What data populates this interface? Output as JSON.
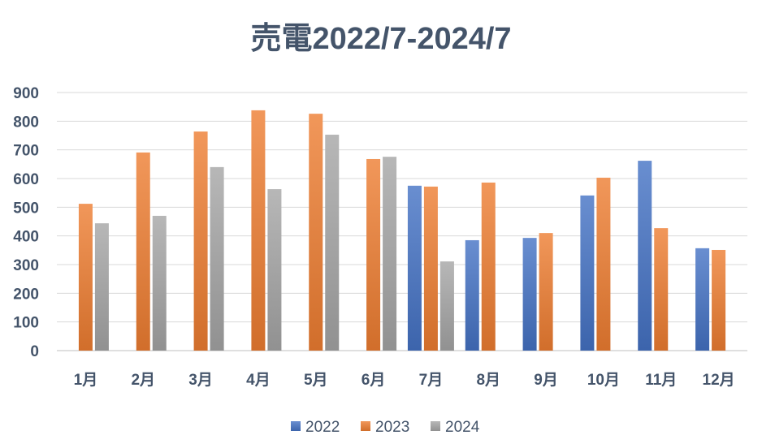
{
  "chart_data": {
    "type": "bar",
    "title": "売電2022/7-2024/7",
    "xlabel": "",
    "ylabel": "",
    "ylim": [
      0,
      900
    ],
    "yticks": [
      0,
      100,
      200,
      300,
      400,
      500,
      600,
      700,
      800,
      900
    ],
    "grid": true,
    "legend_position": "bottom",
    "categories": [
      "1月",
      "2月",
      "3月",
      "4月",
      "5月",
      "6月",
      "7月",
      "8月",
      "9月",
      "10月",
      "11月",
      "12月"
    ],
    "series": [
      {
        "name": "2022",
        "color": "#4472c4",
        "values": [
          null,
          null,
          null,
          null,
          null,
          null,
          575,
          385,
          393,
          541,
          662,
          357
        ]
      },
      {
        "name": "2023",
        "color": "#ed7d31",
        "values": [
          512,
          691,
          764,
          838,
          826,
          668,
          572,
          586,
          410,
          603,
          427,
          351
        ]
      },
      {
        "name": "2024",
        "color": "#a5a5a5",
        "values": [
          444,
          470,
          640,
          563,
          753,
          676,
          311,
          null,
          null,
          null,
          null,
          null
        ]
      }
    ]
  }
}
